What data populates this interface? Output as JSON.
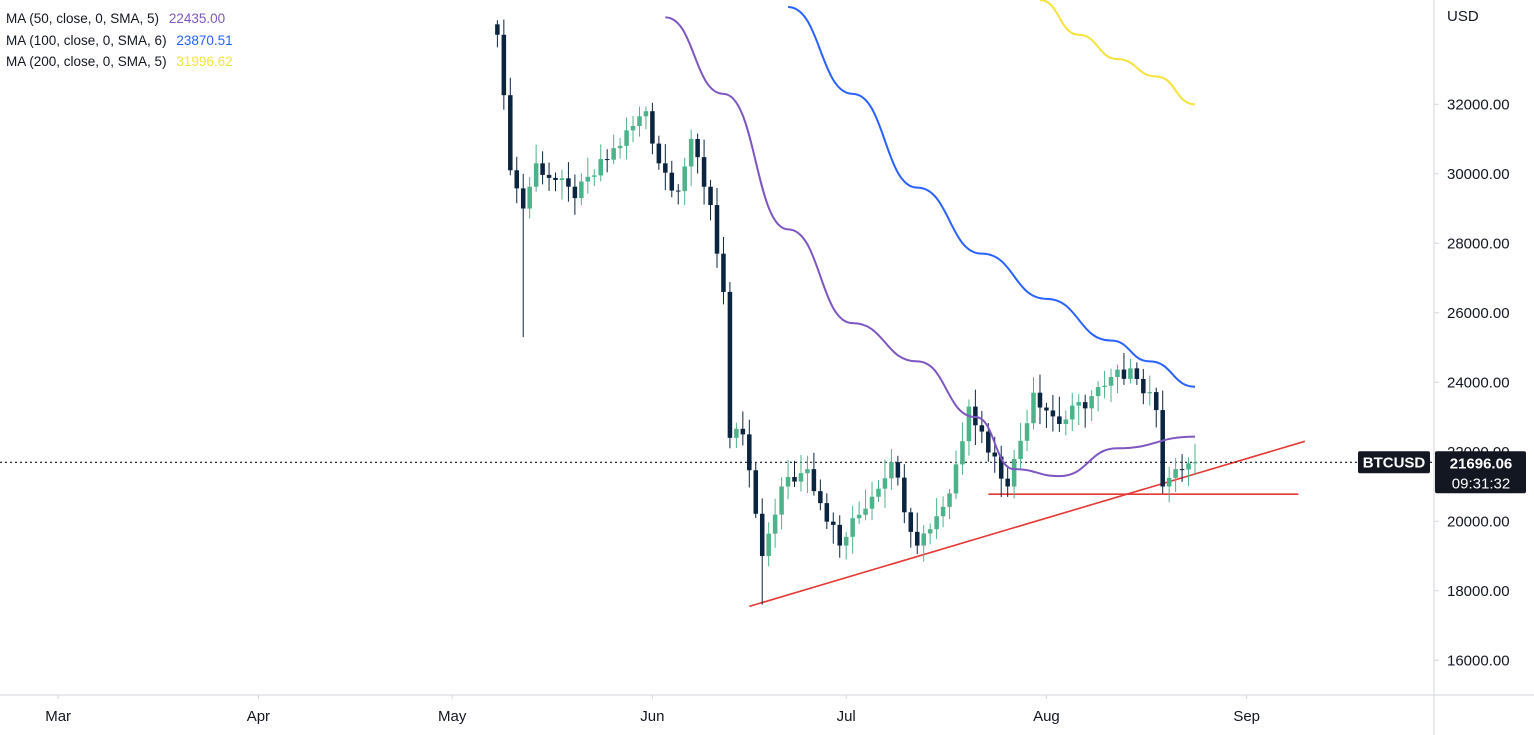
{
  "legend": [
    {
      "label": "MA (50, close, 0, SMA, 5)",
      "value": "22435.00",
      "color": "#7e57c2"
    },
    {
      "label": "MA (100, close, 0, SMA, 6)",
      "value": "23870.51",
      "color": "#2962ff"
    },
    {
      "label": "MA (200, close, 0, SMA, 5)",
      "value": "31996.62",
      "color": "#f5e33c"
    }
  ],
  "price_axis": {
    "currency": "USD",
    "ticks": [
      "32000.00",
      "30000.00",
      "28000.00",
      "26000.00",
      "24000.00",
      "22000.00",
      "20000.00",
      "18000.00",
      "16000.00"
    ]
  },
  "time_axis": {
    "labels": [
      "Mar",
      "Apr",
      "May",
      "Jun",
      "Jul",
      "Aug",
      "Sep"
    ]
  },
  "last_price": {
    "symbol": "BTCUSD",
    "price": "21696.06",
    "countdown": "09:31:32",
    "value": 21696.06
  },
  "colors": {
    "up": "#4db38a",
    "down": "#0b2541",
    "ma50": "#7e57c2",
    "ma100": "#2962ff",
    "ma200": "#f5e33c",
    "trendline": "#e53935"
  },
  "chart_data": {
    "type": "candlestick",
    "symbol": "BTCUSD",
    "ylabel": "USD",
    "ylim": [
      15000,
      35000
    ],
    "x_range": [
      "2022-02-20",
      "2022-09-30"
    ],
    "candle_range": [
      "2022-05-08",
      "2022-08-24"
    ],
    "key_prices": [
      {
        "date": "2022-05-08",
        "close": 34000
      },
      {
        "date": "2022-05-10",
        "close": 30100
      },
      {
        "date": "2022-05-12",
        "close": 29000
      },
      {
        "date": "2022-05-14",
        "close": 30300
      },
      {
        "date": "2022-05-20",
        "close": 29300
      },
      {
        "date": "2022-05-31",
        "close": 31800
      },
      {
        "date": "2022-06-02",
        "close": 30300
      },
      {
        "date": "2022-06-05",
        "close": 29500
      },
      {
        "date": "2022-06-07",
        "close": 31000
      },
      {
        "date": "2022-06-10",
        "close": 29100
      },
      {
        "date": "2022-06-12",
        "close": 26600
      },
      {
        "date": "2022-06-13",
        "close": 22400
      },
      {
        "date": "2022-06-15",
        "close": 22500
      },
      {
        "date": "2022-06-18",
        "close": 19000
      },
      {
        "date": "2022-06-21",
        "close": 21000
      },
      {
        "date": "2022-06-25",
        "close": 21500
      },
      {
        "date": "2022-06-30",
        "close": 19300
      },
      {
        "date": "2022-07-08",
        "close": 21700
      },
      {
        "date": "2022-07-12",
        "close": 19300
      },
      {
        "date": "2022-07-17",
        "close": 20800
      },
      {
        "date": "2022-07-20",
        "close": 23300
      },
      {
        "date": "2022-07-26",
        "close": 21000
      },
      {
        "date": "2022-07-30",
        "close": 23700
      },
      {
        "date": "2022-08-03",
        "close": 22800
      },
      {
        "date": "2022-08-10",
        "close": 23900
      },
      {
        "date": "2022-08-14",
        "close": 24400
      },
      {
        "date": "2022-08-18",
        "close": 23200
      },
      {
        "date": "2022-08-19",
        "close": 21000
      },
      {
        "date": "2022-08-21",
        "close": 21500
      },
      {
        "date": "2022-08-24",
        "close": 21696.06
      }
    ],
    "series": [
      {
        "name": "MA (50, close, 0, SMA, 5)",
        "last": 22435.0,
        "x": [
          "2022-06-03",
          "2022-06-12",
          "2022-06-22",
          "2022-07-02",
          "2022-07-12",
          "2022-07-21",
          "2022-07-27",
          "2022-08-03",
          "2022-08-12",
          "2022-08-24"
        ],
        "values": [
          34500,
          32300,
          28400,
          25700,
          24600,
          23000,
          21500,
          21300,
          22100,
          22435
        ]
      },
      {
        "name": "MA (100, close, 0, SMA, 6)",
        "last": 23870.51,
        "x": [
          "2022-06-22",
          "2022-07-02",
          "2022-07-12",
          "2022-07-22",
          "2022-08-01",
          "2022-08-11",
          "2022-08-17",
          "2022-08-24"
        ],
        "values": [
          34800,
          32300,
          29600,
          27700,
          26400,
          25200,
          24600,
          23870.51
        ]
      },
      {
        "name": "MA (200, close, 0, SMA, 5)",
        "last": 31996.62,
        "x": [
          "2022-07-31",
          "2022-08-06",
          "2022-08-12",
          "2022-08-18",
          "2022-08-24"
        ],
        "values": [
          35000,
          34000,
          33300,
          32800,
          31996.62
        ]
      }
    ],
    "annotations": [
      {
        "type": "trendline",
        "x": [
          "2022-06-16",
          "2022-09-10"
        ],
        "values": [
          17550,
          22300
        ]
      },
      {
        "type": "horizontal-line",
        "x": [
          "2022-07-23",
          "2022-09-09"
        ],
        "values": [
          20780,
          20780
        ]
      },
      {
        "type": "price-line",
        "value": 21696.06
      }
    ]
  }
}
